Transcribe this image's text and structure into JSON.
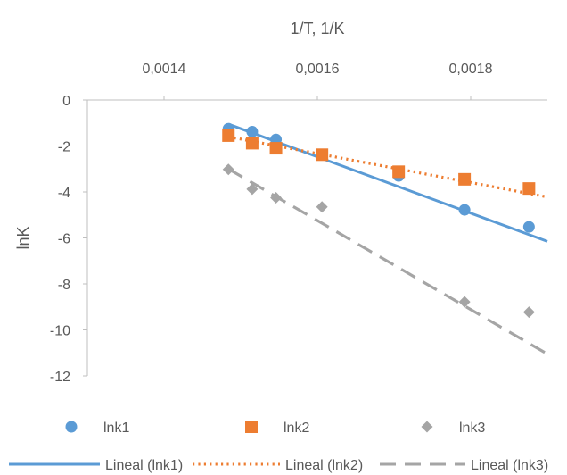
{
  "chart_data": {
    "type": "scatter",
    "xlabel": "1/T, 1/K",
    "ylabel": "lnK",
    "x_axis_position": "top",
    "xlim": [
      0.0013,
      0.0019
    ],
    "ylim": [
      -12,
      0
    ],
    "x_ticks": [
      0.0014,
      0.0016,
      0.0018
    ],
    "x_tick_labels": [
      "0,0014",
      "0,0016",
      "0,0018"
    ],
    "y_ticks": [
      0,
      -2,
      -4,
      -6,
      -8,
      -10,
      -12
    ],
    "y_tick_labels": [
      "0",
      "-2",
      "-4",
      "-6",
      "-8",
      "-10",
      "-12"
    ],
    "grid": false,
    "legend_position": "bottom",
    "series": [
      {
        "name": "lnk1",
        "marker": "circle",
        "color": "#5B9BD5",
        "x": [
          0.001484,
          0.001515,
          0.001546,
          0.001706,
          0.001792,
          0.001876
        ],
        "y": [
          -1.25,
          -1.38,
          -1.72,
          -3.3,
          -4.78,
          -5.52
        ]
      },
      {
        "name": "lnk2",
        "marker": "square",
        "color": "#ED7D31",
        "x": [
          0.001484,
          0.001515,
          0.001546,
          0.001606,
          0.001706,
          0.001792,
          0.001876
        ],
        "y": [
          -1.55,
          -1.88,
          -2.1,
          -2.38,
          -3.12,
          -3.45,
          -3.85
        ]
      },
      {
        "name": "lnk3",
        "marker": "diamond",
        "color": "#A5A5A5",
        "x": [
          0.001484,
          0.001515,
          0.001546,
          0.001606,
          0.001792,
          0.001876
        ],
        "y": [
          -3.02,
          -3.88,
          -4.25,
          -4.65,
          -8.78,
          -9.23
        ]
      }
    ],
    "trendlines": [
      {
        "name": "Lineal (lnk1)",
        "style": "solid",
        "color": "#5B9BD5",
        "x": [
          0.001484,
          0.0019
        ],
        "y": [
          -1.05,
          -6.15
        ]
      },
      {
        "name": "Lineal (lnk2)",
        "style": "dotted",
        "color": "#ED7D31",
        "x": [
          0.001484,
          0.0019
        ],
        "y": [
          -1.6,
          -4.22
        ]
      },
      {
        "name": "Lineal (lnk3)",
        "style": "dashed",
        "color": "#A5A5A5",
        "x": [
          0.001484,
          0.0019
        ],
        "y": [
          -3.0,
          -11.05
        ]
      }
    ]
  }
}
